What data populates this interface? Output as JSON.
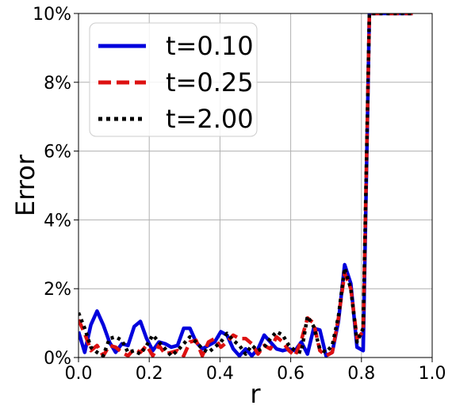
{
  "chart_data": {
    "type": "line",
    "xlabel": "r",
    "ylabel": "Error",
    "xlim": [
      0.0,
      1.0
    ],
    "ylim": [
      0.0,
      10.0
    ],
    "x_ticks": [
      "0.0",
      "0.2",
      "0.4",
      "0.6",
      "0.8",
      "1.0"
    ],
    "y_ticks": [
      "0%",
      "2%",
      "4%",
      "6%",
      "8%",
      "10%"
    ],
    "grid": true,
    "legend_position": "top-left",
    "series": [
      {
        "name": "t=0.10",
        "color": "#0000dd",
        "dash": "solid",
        "x": [
          0.0,
          0.0175,
          0.035,
          0.0525,
          0.07,
          0.0875,
          0.105,
          0.1225,
          0.14,
          0.1575,
          0.175,
          0.1925,
          0.21,
          0.2275,
          0.245,
          0.2625,
          0.28,
          0.2975,
          0.315,
          0.3325,
          0.35,
          0.3675,
          0.385,
          0.4025,
          0.42,
          0.4375,
          0.455,
          0.4725,
          0.49,
          0.5075,
          0.525,
          0.5425,
          0.56,
          0.5775,
          0.595,
          0.6125,
          0.63,
          0.6475,
          0.665,
          0.6825,
          0.7,
          0.7175,
          0.735,
          0.7525,
          0.77,
          0.7875,
          0.805,
          0.8225,
          0.84,
          0.8575,
          0.875,
          0.8925,
          0.91,
          0.9275,
          0.945
        ],
        "values": [
          0.75,
          0.15,
          0.95,
          1.35,
          0.95,
          0.45,
          0.15,
          0.4,
          0.35,
          0.9,
          1.05,
          0.55,
          0.2,
          0.45,
          0.4,
          0.3,
          0.35,
          0.85,
          0.85,
          0.45,
          0.25,
          0.35,
          0.45,
          0.75,
          0.65,
          0.25,
          0.05,
          0.25,
          0.05,
          0.25,
          0.65,
          0.45,
          0.25,
          0.2,
          0.25,
          0.2,
          0.45,
          0.1,
          0.85,
          0.8,
          0.05,
          0.15,
          1.05,
          2.7,
          2.15,
          0.3,
          0.2,
          10.0,
          10.0,
          10.0,
          10.0,
          10.0,
          10.0,
          10.0,
          10.0
        ]
      },
      {
        "name": "t=0.25",
        "color": "#dd1111",
        "dash": "dashed",
        "x": [
          0.0,
          0.0175,
          0.035,
          0.0525,
          0.07,
          0.0875,
          0.105,
          0.1225,
          0.14,
          0.1575,
          0.175,
          0.1925,
          0.21,
          0.2275,
          0.245,
          0.2625,
          0.28,
          0.2975,
          0.315,
          0.3325,
          0.35,
          0.3675,
          0.385,
          0.4025,
          0.42,
          0.4375,
          0.455,
          0.4725,
          0.49,
          0.5075,
          0.525,
          0.5425,
          0.56,
          0.5775,
          0.595,
          0.6125,
          0.63,
          0.6475,
          0.665,
          0.6825,
          0.7,
          0.7175,
          0.735,
          0.7525,
          0.77,
          0.7875,
          0.805,
          0.8225,
          0.84,
          0.8575,
          0.875,
          0.8925,
          0.91,
          0.9275,
          0.945
        ],
        "values": [
          1.1,
          0.7,
          0.2,
          0.35,
          0.05,
          0.35,
          0.3,
          0.15,
          0.05,
          0.25,
          0.15,
          0.35,
          0.05,
          0.35,
          0.1,
          0.15,
          0.2,
          0.05,
          0.45,
          0.5,
          0.05,
          0.45,
          0.55,
          0.3,
          0.45,
          0.65,
          0.55,
          0.55,
          0.4,
          0.1,
          0.35,
          0.25,
          0.6,
          0.45,
          0.2,
          0.05,
          0.5,
          1.15,
          1.0,
          0.2,
          0.05,
          0.15,
          1.15,
          2.45,
          2.0,
          0.55,
          0.75,
          10.0,
          10.0,
          10.0,
          10.0,
          10.0,
          10.0,
          10.0,
          10.0
        ]
      },
      {
        "name": "t=2.00",
        "color": "#000000",
        "dash": "dotted",
        "x": [
          0.0,
          0.0175,
          0.035,
          0.0525,
          0.07,
          0.0875,
          0.105,
          0.1225,
          0.14,
          0.1575,
          0.175,
          0.1925,
          0.21,
          0.2275,
          0.245,
          0.2625,
          0.28,
          0.2975,
          0.315,
          0.3325,
          0.35,
          0.3675,
          0.385,
          0.4025,
          0.42,
          0.4375,
          0.455,
          0.4725,
          0.49,
          0.5075,
          0.525,
          0.5425,
          0.56,
          0.5775,
          0.595,
          0.6125,
          0.63,
          0.6475,
          0.665,
          0.6825,
          0.7,
          0.7175,
          0.735,
          0.7525,
          0.77,
          0.7875,
          0.805,
          0.8225,
          0.84,
          0.8575,
          0.875,
          0.8925,
          0.91,
          0.9275,
          0.945
        ],
        "values": [
          1.3,
          0.85,
          0.3,
          0.15,
          0.05,
          0.55,
          0.6,
          0.5,
          0.15,
          0.2,
          0.1,
          0.35,
          0.65,
          0.45,
          0.25,
          0.05,
          0.2,
          0.4,
          0.6,
          0.45,
          0.25,
          0.15,
          0.3,
          0.45,
          0.7,
          0.5,
          0.35,
          0.1,
          0.35,
          0.2,
          0.3,
          0.55,
          0.75,
          0.65,
          0.35,
          0.2,
          0.15,
          1.2,
          0.9,
          0.25,
          0.15,
          0.35,
          1.2,
          2.6,
          2.0,
          0.45,
          0.85,
          10.0,
          10.0,
          10.0,
          10.0,
          10.0,
          10.0,
          10.0,
          10.0
        ]
      }
    ]
  }
}
